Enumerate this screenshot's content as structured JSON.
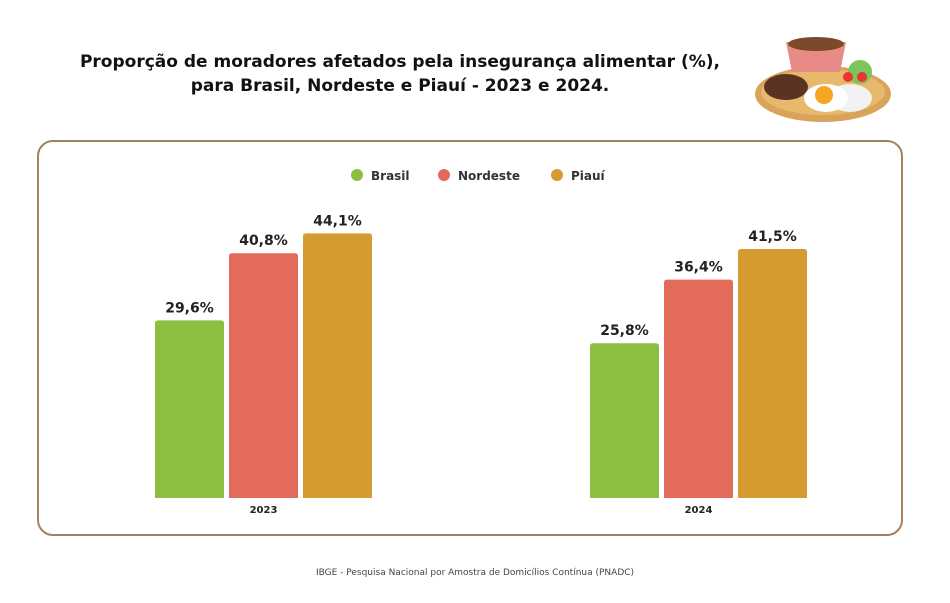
{
  "title_line1": "Proporção de moradores afetados pela insegurança alimentar (%),",
  "title_line2": "para Brasil, Nordeste e Piauí - 2023 e 2024.",
  "source": "IBGE - Pesquisa Nacional por Amostra de Domicílios Contínua (PNADC)",
  "chart_data": {
    "type": "bar",
    "categories": [
      "2023",
      "2024"
    ],
    "series": [
      {
        "name": "Brasil",
        "values": [
          29.6,
          25.8
        ],
        "labels": [
          "29,6%",
          "25,8%"
        ],
        "color": "#8cbf3f"
      },
      {
        "name": "Nordeste",
        "values": [
          40.8,
          36.4
        ],
        "labels": [
          "40,8%",
          "36,4%"
        ],
        "color": "#e36b5b"
      },
      {
        "name": "Piauí",
        "values": [
          44.1,
          41.5
        ],
        "labels": [
          "44,1%",
          "41,5%"
        ],
        "color": "#d69b30"
      }
    ],
    "legend": "top-center",
    "grid": false,
    "ylim": [
      0,
      50
    ]
  }
}
